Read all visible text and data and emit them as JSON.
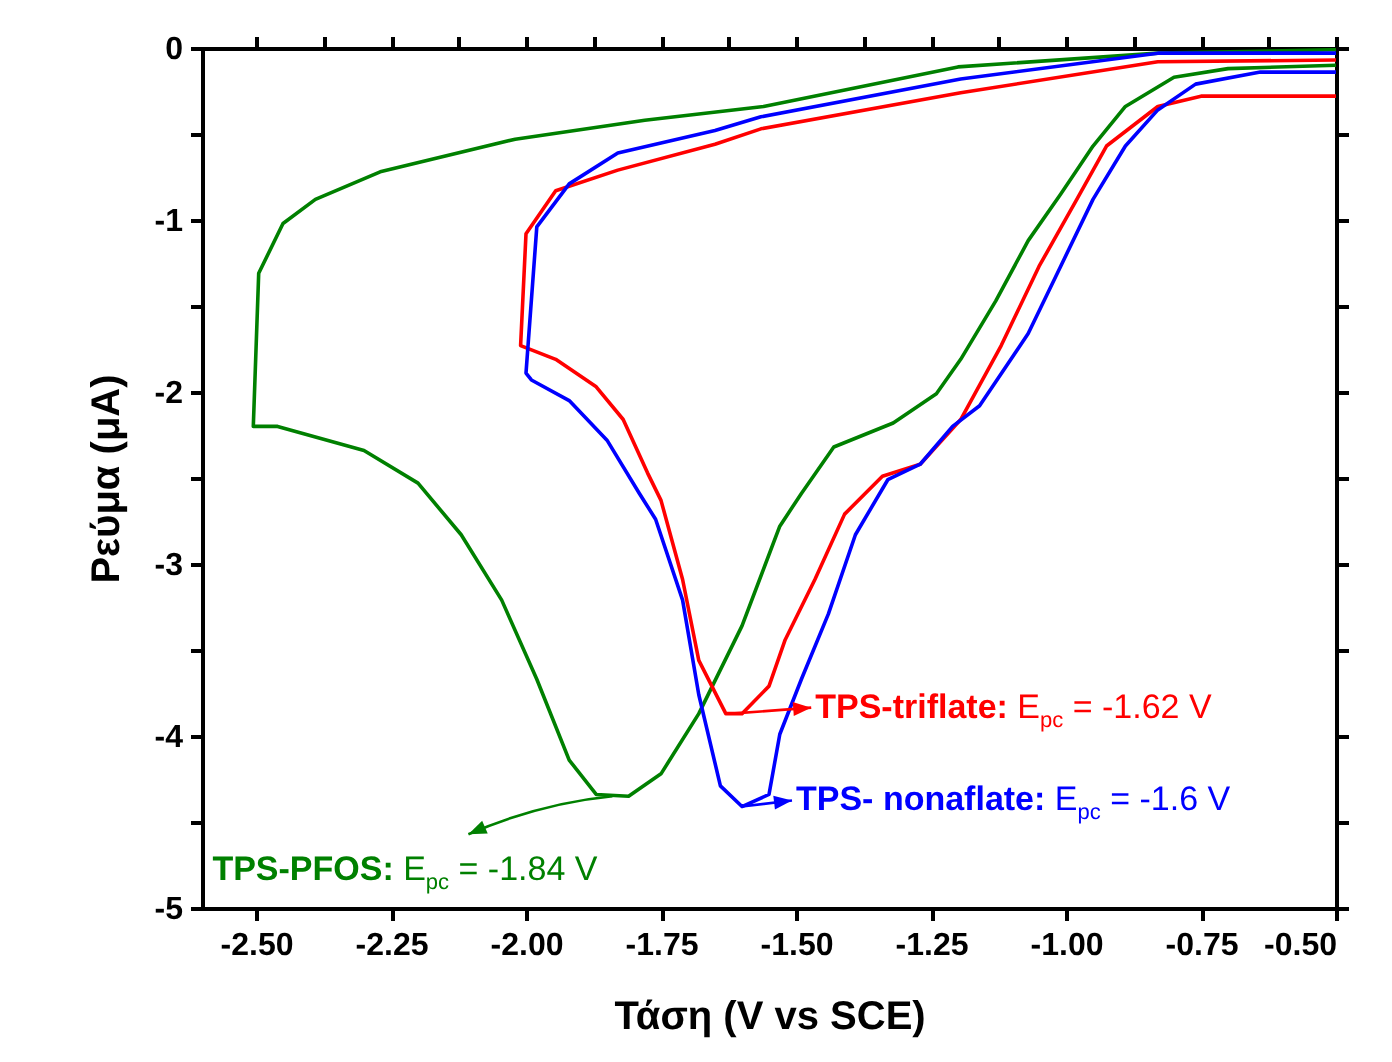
{
  "chart_data": {
    "type": "line",
    "xlabel": "Τάση (V vs SCE)",
    "ylabel": "Ρεύμα (μA)",
    "xlim": [
      -2.6,
      -0.5
    ],
    "ylim": [
      -5,
      0
    ],
    "xticks": [
      {
        "value": -2.5,
        "label": "-2.50"
      },
      {
        "value": -2.375,
        "label": null
      },
      {
        "value": -2.25,
        "label": "-2.25"
      },
      {
        "value": -2.125,
        "label": null
      },
      {
        "value": -2.0,
        "label": "-2.00"
      },
      {
        "value": -1.875,
        "label": null
      },
      {
        "value": -1.75,
        "label": "-1.75"
      },
      {
        "value": -1.625,
        "label": null
      },
      {
        "value": -1.5,
        "label": "-1.50"
      },
      {
        "value": -1.375,
        "label": null
      },
      {
        "value": -1.25,
        "label": "-1.25"
      },
      {
        "value": -1.125,
        "label": null
      },
      {
        "value": -1.0,
        "label": "-1.00"
      },
      {
        "value": -0.875,
        "label": null
      },
      {
        "value": -0.75,
        "label": "-0.75"
      },
      {
        "value": -0.625,
        "label": null
      },
      {
        "value": -0.5,
        "label": "-0.50"
      }
    ],
    "yticks": [
      0,
      {
        "value": -0.5,
        "label": null
      },
      -1,
      {
        "value": -1.5,
        "label": null
      },
      -2,
      {
        "value": -2.5,
        "label": null
      },
      -3,
      {
        "value": -3.5,
        "label": null
      },
      -4,
      {
        "value": -4.5,
        "label": null
      },
      -5
    ],
    "series": [
      {
        "color": "#008000",
        "x": [
          -0.5,
          -0.83,
          -1.2,
          -1.56,
          -1.78,
          -2.02,
          -2.27,
          -2.39,
          -2.45,
          -2.495,
          -2.505,
          -2.46,
          -2.3,
          -2.2,
          -2.12,
          -2.045,
          -1.98,
          -1.92,
          -1.87,
          -1.81,
          -1.75,
          -1.68,
          -1.6,
          -1.53,
          -1.49,
          -1.43,
          -1.32,
          -1.24,
          -1.195,
          -1.13,
          -1.07,
          -1.01,
          -0.95,
          -0.89,
          -0.8,
          -0.7,
          -0.5
        ],
        "values": [
          -0.01,
          -0.03,
          -0.11,
          -0.34,
          -0.42,
          -0.53,
          -0.72,
          -0.88,
          -1.02,
          -1.31,
          -2.2,
          -2.2,
          -2.34,
          -2.53,
          -2.83,
          -3.21,
          -3.67,
          -4.14,
          -4.34,
          -4.35,
          -4.22,
          -3.87,
          -3.36,
          -2.78,
          -2.59,
          -2.32,
          -2.18,
          -2.01,
          -1.81,
          -1.47,
          -1.12,
          -0.85,
          -0.57,
          -0.34,
          -0.17,
          -0.12,
          -0.1
        ]
      },
      {
        "color": "#ff0000",
        "x": [
          -0.5,
          -0.83,
          -1.195,
          -1.565,
          -1.65,
          -1.83,
          -1.945,
          -2.0,
          -2.01,
          -1.945,
          -1.87,
          -1.82,
          -1.775,
          -1.75,
          -1.71,
          -1.68,
          -1.63,
          -1.6,
          -1.55,
          -1.52,
          -1.465,
          -1.41,
          -1.34,
          -1.27,
          -1.195,
          -1.12,
          -1.05,
          -0.98,
          -0.925,
          -0.83,
          -0.75,
          -0.5
        ],
        "values": [
          -0.07,
          -0.08,
          -0.26,
          -0.47,
          -0.56,
          -0.71,
          -0.83,
          -1.08,
          -1.73,
          -1.81,
          -1.97,
          -2.16,
          -2.47,
          -2.63,
          -3.09,
          -3.56,
          -3.87,
          -3.87,
          -3.71,
          -3.44,
          -3.09,
          -2.71,
          -2.49,
          -2.42,
          -2.16,
          -1.73,
          -1.27,
          -0.88,
          -0.57,
          -0.34,
          -0.28,
          -0.28
        ]
      },
      {
        "color": "#0000ff",
        "x": [
          -0.5,
          -0.83,
          -1.195,
          -1.565,
          -1.65,
          -1.83,
          -1.92,
          -1.98,
          -2.0,
          -1.99,
          -1.92,
          -1.85,
          -1.79,
          -1.76,
          -1.71,
          -1.68,
          -1.64,
          -1.6,
          -1.55,
          -1.53,
          -1.49,
          -1.44,
          -1.39,
          -1.33,
          -1.27,
          -1.21,
          -1.16,
          -1.07,
          -1.01,
          -0.95,
          -0.89,
          -0.83,
          -0.76,
          -0.64,
          -0.5
        ],
        "values": [
          -0.03,
          -0.03,
          -0.18,
          -0.4,
          -0.48,
          -0.61,
          -0.79,
          -1.04,
          -1.89,
          -1.93,
          -2.05,
          -2.28,
          -2.59,
          -2.74,
          -3.21,
          -3.76,
          -4.29,
          -4.41,
          -4.34,
          -3.99,
          -3.67,
          -3.29,
          -2.83,
          -2.51,
          -2.42,
          -2.2,
          -2.08,
          -1.66,
          -1.27,
          -0.88,
          -0.57,
          -0.36,
          -0.21,
          -0.14,
          -0.14
        ]
      }
    ],
    "annotations": [
      {
        "text": "TPS-PFOS: E$_{pc}$ = -1.84 V",
        "x": -1.84,
        "y": -4.35
      },
      {
        "text": "TPS-triflate: E$_{pc}$ = -1.62 V",
        "x": -1.62,
        "y": -3.87
      },
      {
        "text": "TPS- nonaflate: E$_{pc}$ = -1.6 V",
        "x": -1.6,
        "y": -4.41
      }
    ]
  }
}
